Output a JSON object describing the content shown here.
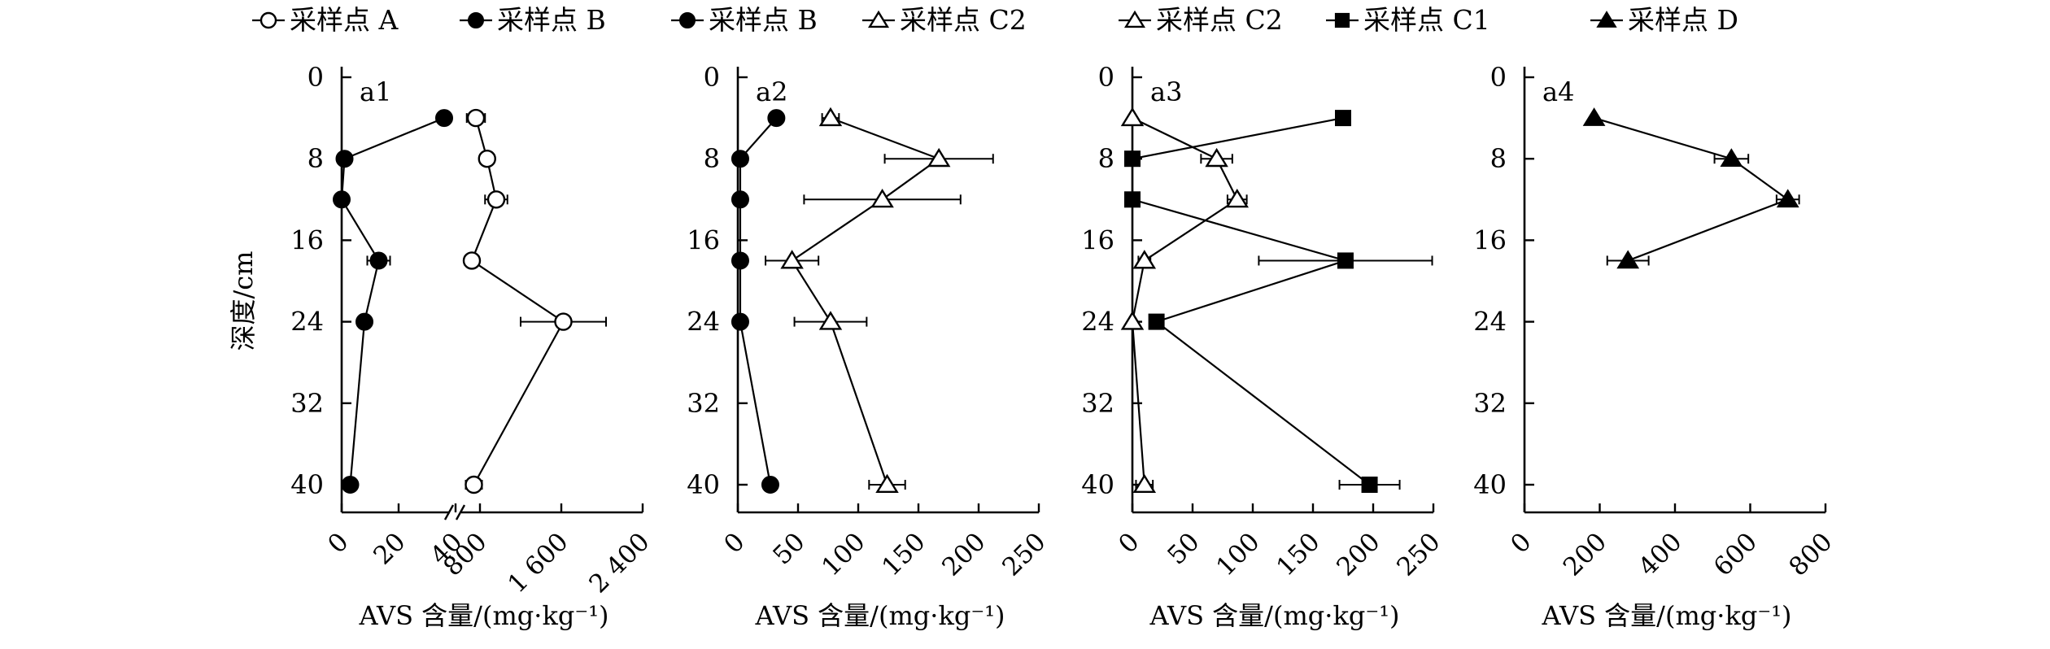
{
  "legend": [
    {
      "label": "采样点 A",
      "marker": "open-circle",
      "dashed": true
    },
    {
      "label": "采样点 B",
      "marker": "filled-circle",
      "dashed": true
    },
    {
      "label": "采样点 B",
      "marker": "filled-circle",
      "dashed": true
    },
    {
      "label": "采样点 C2",
      "marker": "open-triangle",
      "dashed": true
    },
    {
      "label": "采样点 C2",
      "marker": "open-triangle",
      "dashed": true
    },
    {
      "label": "采样点 C1",
      "marker": "filled-square",
      "dashed": true
    },
    {
      "label": "采样点 D",
      "marker": "filled-triangle",
      "dashed": true
    }
  ],
  "chart_data": [
    {
      "type": "line",
      "panel_label": "a1",
      "xlabel": "AVS 含量/(mg·kg⁻¹)",
      "ylabel": "深度/cm",
      "y_reversed": true,
      "ylim": [
        0,
        42
      ],
      "yticks": [
        0,
        8,
        16,
        24,
        32,
        40
      ],
      "ytick_labels": [
        "0",
        "8",
        "16",
        "24",
        "32",
        "40"
      ],
      "broken_x_axis": true,
      "x_segments": [
        {
          "range": [
            0,
            40
          ],
          "ticks": [
            0,
            20,
            40
          ],
          "tick_labels": [
            "0",
            "20",
            "40"
          ]
        },
        {
          "range": [
            560,
            2400
          ],
          "ticks": [
            800,
            1600,
            2400
          ],
          "tick_labels": [
            "800",
            "1 600",
            "2 400"
          ]
        }
      ],
      "series": [
        {
          "marker": "open-circle",
          "segment": 1,
          "points": [
            {
              "x": 760,
              "y": 4,
              "err": 90
            },
            {
              "x": 870,
              "y": 8,
              "err": 70
            },
            {
              "x": 960,
              "y": 12,
              "err": 110
            },
            {
              "x": 720,
              "y": 18,
              "err": 70
            },
            {
              "x": 1620,
              "y": 24,
              "err": 420
            },
            {
              "x": 740,
              "y": 40,
              "err": 80
            }
          ]
        },
        {
          "marker": "filled-circle",
          "segment": 0,
          "points": [
            {
              "x": 36,
              "y": 4,
              "err": 0
            },
            {
              "x": 1,
              "y": 8,
              "err": 0
            },
            {
              "x": 0,
              "y": 12,
              "err": 0
            },
            {
              "x": 13,
              "y": 18,
              "err": 4
            },
            {
              "x": 8,
              "y": 24,
              "err": 2
            },
            {
              "x": 3,
              "y": 40,
              "err": 0
            }
          ]
        }
      ]
    },
    {
      "type": "line",
      "panel_label": "a2",
      "xlabel": "AVS 含量/(mg·kg⁻¹)",
      "y_reversed": true,
      "ylim": [
        0,
        42
      ],
      "yticks": [
        0,
        8,
        16,
        24,
        32,
        40
      ],
      "ytick_labels": [
        "0",
        "8",
        "16",
        "24",
        "32",
        "40"
      ],
      "xlim": [
        0,
        250
      ],
      "xticks": [
        0,
        50,
        100,
        150,
        200,
        250
      ],
      "xtick_labels": [
        "0",
        "50",
        "100",
        "150",
        "200",
        "250"
      ],
      "series": [
        {
          "marker": "filled-circle",
          "points": [
            {
              "x": 32,
              "y": 4,
              "err": 0
            },
            {
              "x": 2,
              "y": 8,
              "err": 0
            },
            {
              "x": 2,
              "y": 12,
              "err": 0
            },
            {
              "x": 2,
              "y": 18,
              "err": 0
            },
            {
              "x": 2,
              "y": 24,
              "err": 0
            },
            {
              "x": 27,
              "y": 40,
              "err": 0
            }
          ]
        },
        {
          "marker": "open-triangle",
          "points": [
            {
              "x": 77,
              "y": 4,
              "err": 7
            },
            {
              "x": 167,
              "y": 8,
              "err": 45
            },
            {
              "x": 120,
              "y": 12,
              "err": 65
            },
            {
              "x": 45,
              "y": 18,
              "err": 22
            },
            {
              "x": 77,
              "y": 24,
              "err": 30
            },
            {
              "x": 124,
              "y": 40,
              "err": 15
            }
          ]
        }
      ]
    },
    {
      "type": "line",
      "panel_label": "a3",
      "xlabel": "AVS 含量/(mg·kg⁻¹)",
      "y_reversed": true,
      "ylim": [
        0,
        42
      ],
      "yticks": [
        0,
        8,
        16,
        24,
        32,
        40
      ],
      "ytick_labels": [
        "0",
        "8",
        "16",
        "24",
        "32",
        "40"
      ],
      "xlim": [
        0,
        250
      ],
      "xticks": [
        0,
        50,
        100,
        150,
        200,
        250
      ],
      "xtick_labels": [
        "0",
        "50",
        "100",
        "150",
        "200",
        "250"
      ],
      "series": [
        {
          "marker": "open-triangle",
          "points": [
            {
              "x": 0,
              "y": 4,
              "err": 0
            },
            {
              "x": 70,
              "y": 8,
              "err": 13
            },
            {
              "x": 87,
              "y": 12,
              "err": 8
            },
            {
              "x": 10,
              "y": 18,
              "err": 5
            },
            {
              "x": 0,
              "y": 24,
              "err": 0
            },
            {
              "x": 10,
              "y": 40,
              "err": 7
            }
          ]
        },
        {
          "marker": "filled-square",
          "points": [
            {
              "x": 175,
              "y": 4,
              "err": 0
            },
            {
              "x": 0,
              "y": 8,
              "err": 0
            },
            {
              "x": 0,
              "y": 12,
              "err": 0
            },
            {
              "x": 177,
              "y": 18,
              "err": 72
            },
            {
              "x": 20,
              "y": 24,
              "err": 5
            },
            {
              "x": 197,
              "y": 40,
              "err": 25
            }
          ]
        }
      ]
    },
    {
      "type": "line",
      "panel_label": "a4",
      "xlabel": "AVS 含量/(mg·kg⁻¹)",
      "y_reversed": true,
      "ylim": [
        0,
        42
      ],
      "yticks": [
        0,
        8,
        16,
        24,
        32,
        40
      ],
      "ytick_labels": [
        "0",
        "8",
        "16",
        "24",
        "32",
        "40"
      ],
      "xlim": [
        0,
        800
      ],
      "xticks": [
        0,
        200,
        400,
        600,
        800
      ],
      "xtick_labels": [
        "0",
        "200",
        "400",
        "600",
        "800"
      ],
      "series": [
        {
          "marker": "filled-triangle",
          "points": [
            {
              "x": 185,
              "y": 4,
              "err": 0
            },
            {
              "x": 550,
              "y": 8,
              "err": 45
            },
            {
              "x": 700,
              "y": 12,
              "err": 30
            },
            {
              "x": 275,
              "y": 18,
              "err": 55
            }
          ]
        }
      ]
    }
  ]
}
